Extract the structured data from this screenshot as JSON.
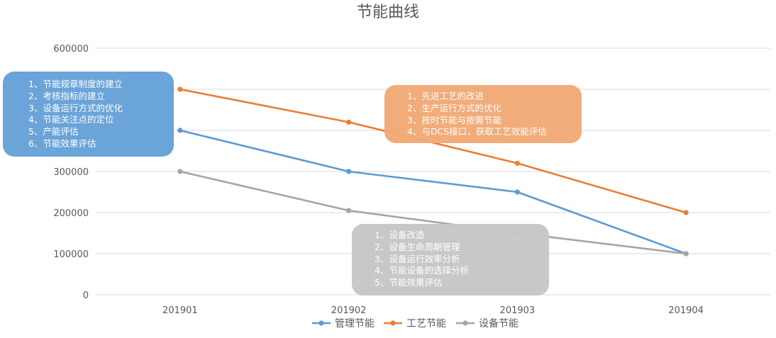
{
  "chart_data": {
    "type": "line",
    "title": "节能曲线",
    "xlabel": "",
    "ylabel": "",
    "categories": [
      "201901",
      "201902",
      "201903",
      "201904"
    ],
    "ylim": [
      0,
      600000
    ],
    "yticks": [
      "0",
      "100000",
      "200000",
      "300000",
      "400000",
      "500000",
      "600000"
    ],
    "grid": true,
    "legend_position": "bottom",
    "series": [
      {
        "name": "管理节能",
        "color": "#5b9bd5",
        "values": [
          400000,
          300000,
          250000,
          100000
        ]
      },
      {
        "name": "工艺节能",
        "color": "#ed7d31",
        "values": [
          500000,
          420000,
          320000,
          200000
        ]
      },
      {
        "name": "设备节能",
        "color": "#a5a5a5",
        "values": [
          300000,
          205000,
          150000,
          100000
        ]
      }
    ]
  },
  "annotations": {
    "management": {
      "color": "#6aa4d8",
      "lines": [
        "1、节能规章制度的建立",
        "2、考核指标的建立",
        "3、设备运行方式的优化",
        "4、节能关注点的定位",
        "5、产能评估",
        "6、节能效果评估"
      ]
    },
    "process": {
      "color": "#f1aa76",
      "lines": [
        "1、先进工艺的改进",
        "2、生产运行方式的优化",
        "3、按时节能与按需节能",
        "4、与DCS接口，获取工艺效能评估"
      ]
    },
    "equipment": {
      "color": "#c7c7c7",
      "lines": [
        "1、设备改造",
        "2、设备生命周期管理",
        "3、设备运行效率分析",
        "4、节能设备的选择分析",
        "5、节能效果评估"
      ]
    }
  }
}
